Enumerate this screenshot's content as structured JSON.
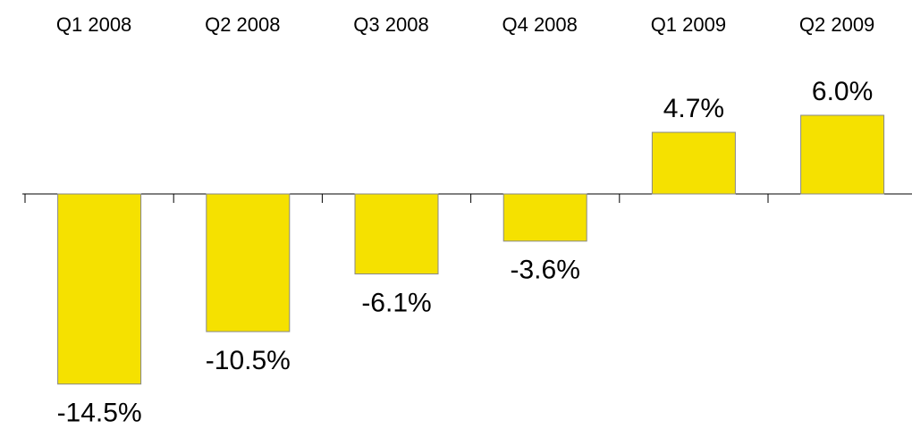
{
  "chart_data": {
    "type": "bar",
    "categories": [
      "Q1 2008",
      "Q2 2008",
      "Q3 2008",
      "Q4 2008",
      "Q1 2009",
      "Q2 2009"
    ],
    "values": [
      -14.5,
      -10.5,
      -6.1,
      -3.6,
      4.7,
      6.0
    ],
    "value_labels": [
      "-14.5%",
      "-10.5%",
      "-6.1%",
      "-3.6%",
      "4.7%",
      "6.0%"
    ],
    "color": "#f5e100"
  }
}
